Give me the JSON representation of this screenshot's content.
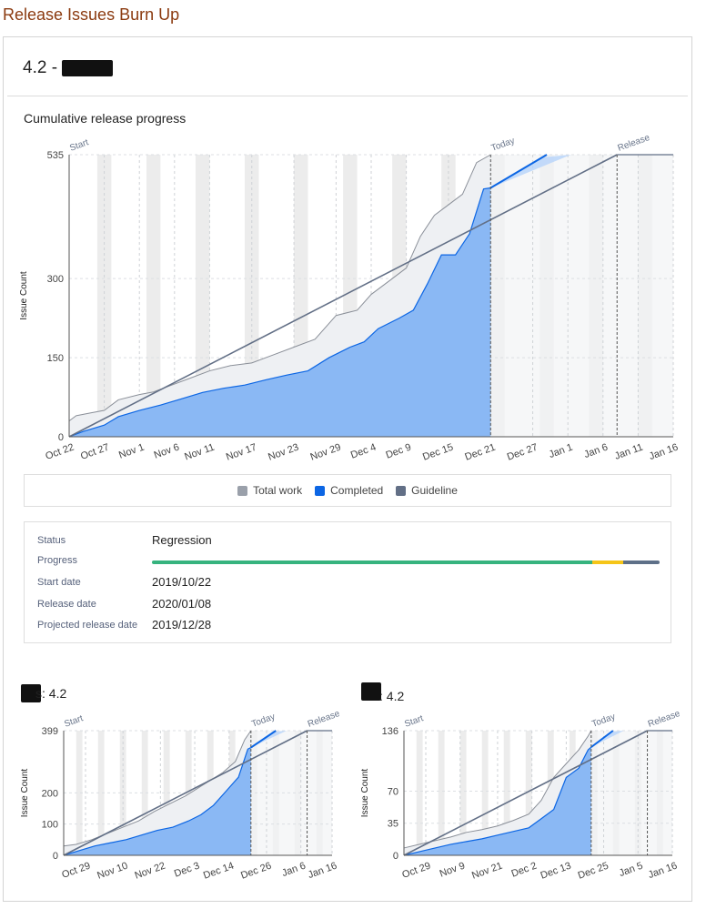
{
  "page_title": "Release Issues Burn Up",
  "version_title": "4.2 -",
  "main_chart_title": "Cumulative release progress",
  "legend": [
    {
      "label": "Total work",
      "color": "#9aa0aa"
    },
    {
      "label": "Completed",
      "color": "#0c66e4"
    },
    {
      "label": "Guideline",
      "color": "#626f86"
    }
  ],
  "info": {
    "status_label": "Status",
    "status_value": "Regression",
    "progress_label": "Progress",
    "progress_segments": [
      {
        "fraction": 0.868,
        "color": "#36b37e"
      },
      {
        "fraction": 0.06,
        "color": "#f5c518"
      },
      {
        "fraction": 0.072,
        "color": "#5e7088"
      }
    ],
    "start_label": "Start date",
    "start_value": "2019/10/22",
    "release_label": "Release date",
    "release_value": "2020/01/08",
    "projected_label": "Projected release date",
    "projected_value": "2019/12/28"
  },
  "sub_titles": [
    "s: 4.2",
    ": 4.2"
  ],
  "colors": {
    "total_fill": "#eef0f3",
    "total_line": "#8a8f98",
    "completed_fill": "#8ab8f4",
    "completed_line": "#0c66e4",
    "guideline": "#626f86"
  },
  "chart_data": [
    {
      "type": "area",
      "ylabel": "Issue Count",
      "yticks": [
        0,
        150,
        300,
        535
      ],
      "ylim": [
        0,
        535
      ],
      "xlim": [
        "2019-10-22",
        "2020-01-16"
      ],
      "xticks": [
        "Oct 22",
        "Oct 27",
        "Nov 1",
        "Nov 6",
        "Nov 11",
        "Nov 17",
        "Nov 23",
        "Nov 29",
        "Dec 4",
        "Dec 9",
        "Dec 15",
        "Dec 21",
        "Dec 27",
        "Jan 1",
        "Jan 6",
        "Jan 11",
        "Jan 16"
      ],
      "markers": {
        "start": "Start",
        "today": "Today",
        "release": "Release"
      },
      "start_date": "2019-10-22",
      "today_date": "2019-12-21",
      "release_date": "2020-01-08",
      "series": [
        {
          "name": "Total work",
          "x": [
            "2019-10-22",
            "2019-10-23",
            "2019-10-25",
            "2019-10-27",
            "2019-10-29",
            "2019-11-01",
            "2019-11-03",
            "2019-11-05",
            "2019-11-08",
            "2019-11-11",
            "2019-11-14",
            "2019-11-17",
            "2019-11-20",
            "2019-11-23",
            "2019-11-26",
            "2019-11-29",
            "2019-12-02",
            "2019-12-04",
            "2019-12-07",
            "2019-12-09",
            "2019-12-11",
            "2019-12-13",
            "2019-12-15",
            "2019-12-17",
            "2019-12-19",
            "2019-12-21"
          ],
          "values": [
            30,
            40,
            45,
            50,
            70,
            80,
            85,
            95,
            110,
            125,
            135,
            140,
            155,
            170,
            185,
            230,
            240,
            270,
            300,
            320,
            380,
            420,
            440,
            460,
            520,
            535
          ]
        },
        {
          "name": "Completed",
          "x": [
            "2019-10-22",
            "2019-10-24",
            "2019-10-27",
            "2019-10-29",
            "2019-11-01",
            "2019-11-04",
            "2019-11-07",
            "2019-11-10",
            "2019-11-13",
            "2019-11-16",
            "2019-11-19",
            "2019-11-22",
            "2019-11-25",
            "2019-11-28",
            "2019-12-01",
            "2019-12-03",
            "2019-12-05",
            "2019-12-08",
            "2019-12-10",
            "2019-12-12",
            "2019-12-14",
            "2019-12-16",
            "2019-12-18",
            "2019-12-20",
            "2019-12-21"
          ],
          "values": [
            0,
            10,
            22,
            38,
            50,
            60,
            72,
            84,
            92,
            98,
            108,
            117,
            125,
            150,
            170,
            180,
            205,
            225,
            240,
            290,
            345,
            345,
            385,
            470,
            472
          ]
        },
        {
          "name": "Guideline",
          "x": [
            "2019-10-22",
            "2020-01-08"
          ],
          "values": [
            0,
            535
          ]
        }
      ],
      "forecast": {
        "x": [
          "2019-12-21",
          "2019-12-29"
        ],
        "values": [
          472,
          535
        ]
      }
    },
    {
      "type": "area",
      "ylabel": "Issue Count",
      "yticks": [
        0,
        100,
        200,
        399
      ],
      "ylim": [
        0,
        399
      ],
      "xlim": [
        "2019-10-22",
        "2020-01-16"
      ],
      "xticks": [
        "Oct 29",
        "Nov 10",
        "Nov 22",
        "Dec 3",
        "Dec 14",
        "Dec 26",
        "Jan 6",
        "Jan 16"
      ],
      "markers": {
        "start": "Start",
        "today": "Today",
        "release": "Release"
      },
      "start_date": "2019-10-22",
      "today_date": "2019-12-21",
      "release_date": "2020-01-08",
      "series": [
        {
          "name": "Total work",
          "x": [
            "2019-10-22",
            "2019-10-26",
            "2019-10-31",
            "2019-11-05",
            "2019-11-10",
            "2019-11-15",
            "2019-11-20",
            "2019-11-25",
            "2019-11-30",
            "2019-12-04",
            "2019-12-08",
            "2019-12-12",
            "2019-12-16",
            "2019-12-19",
            "2019-12-21"
          ],
          "values": [
            30,
            35,
            50,
            70,
            90,
            110,
            140,
            165,
            190,
            215,
            240,
            265,
            300,
            370,
            399
          ]
        },
        {
          "name": "Completed",
          "x": [
            "2019-10-22",
            "2019-10-27",
            "2019-11-01",
            "2019-11-06",
            "2019-11-11",
            "2019-11-16",
            "2019-11-21",
            "2019-11-26",
            "2019-12-01",
            "2019-12-05",
            "2019-12-09",
            "2019-12-13",
            "2019-12-17",
            "2019-12-20",
            "2019-12-21"
          ],
          "values": [
            0,
            15,
            30,
            40,
            50,
            65,
            80,
            90,
            110,
            130,
            160,
            205,
            250,
            340,
            345
          ]
        },
        {
          "name": "Guideline",
          "x": [
            "2019-10-22",
            "2020-01-08"
          ],
          "values": [
            0,
            399
          ]
        }
      ],
      "forecast": {
        "x": [
          "2019-12-21",
          "2019-12-29"
        ],
        "values": [
          345,
          399
        ]
      }
    },
    {
      "type": "area",
      "ylabel": "Issue Count",
      "yticks": [
        0,
        35,
        70,
        136
      ],
      "ylim": [
        0,
        136
      ],
      "xlim": [
        "2019-10-22",
        "2020-01-16"
      ],
      "xticks": [
        "Oct 29",
        "Nov 9",
        "Nov 21",
        "Dec 2",
        "Dec 13",
        "Dec 25",
        "Jan 5",
        "Jan 16"
      ],
      "markers": {
        "start": "Start",
        "today": "Today",
        "release": "Release"
      },
      "start_date": "2019-10-22",
      "today_date": "2019-12-21",
      "release_date": "2020-01-08",
      "series": [
        {
          "name": "Total work",
          "x": [
            "2019-10-22",
            "2019-10-27",
            "2019-11-01",
            "2019-11-06",
            "2019-11-11",
            "2019-11-16",
            "2019-11-21",
            "2019-11-26",
            "2019-12-01",
            "2019-12-05",
            "2019-12-09",
            "2019-12-13",
            "2019-12-17",
            "2019-12-20",
            "2019-12-21"
          ],
          "values": [
            8,
            12,
            16,
            20,
            25,
            28,
            32,
            38,
            45,
            60,
            85,
            100,
            115,
            130,
            136
          ]
        },
        {
          "name": "Completed",
          "x": [
            "2019-10-22",
            "2019-10-27",
            "2019-11-01",
            "2019-11-06",
            "2019-11-11",
            "2019-11-16",
            "2019-11-21",
            "2019-11-26",
            "2019-12-01",
            "2019-12-05",
            "2019-12-09",
            "2019-12-13",
            "2019-12-17",
            "2019-12-20",
            "2019-12-21"
          ],
          "values": [
            0,
            4,
            8,
            12,
            15,
            18,
            22,
            26,
            30,
            40,
            50,
            85,
            95,
            115,
            118
          ]
        },
        {
          "name": "Guideline",
          "x": [
            "2019-10-22",
            "2020-01-08"
          ],
          "values": [
            0,
            136
          ]
        }
      ],
      "forecast": {
        "x": [
          "2019-12-21",
          "2019-12-28"
        ],
        "values": [
          118,
          136
        ]
      }
    }
  ]
}
